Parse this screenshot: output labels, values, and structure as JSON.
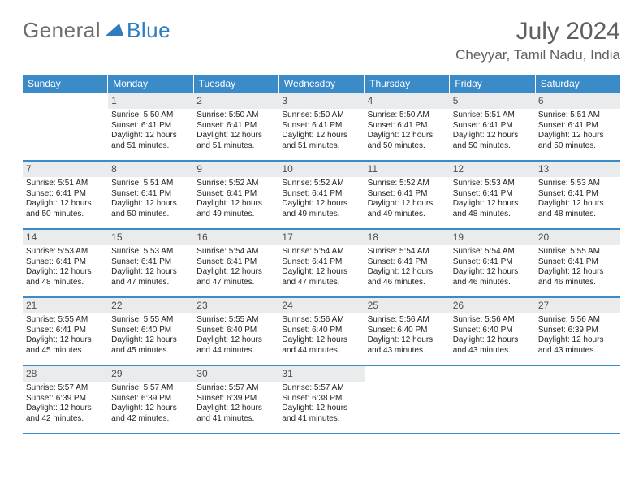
{
  "brand": {
    "part1": "General",
    "part2": "Blue"
  },
  "title": "July 2024",
  "subtitle": "Cheyyar, Tamil Nadu, India",
  "colors": {
    "header_bg": "#3b8bc9",
    "header_fg": "#ffffff",
    "daynum_bg": "#e9ebed",
    "text": "#242424",
    "muted": "#5f5f5f",
    "rule": "#3b8bc9",
    "page_bg": "#ffffff"
  },
  "typography": {
    "title_fontsize": 30,
    "subtitle_fontsize": 17,
    "dow_fontsize": 12,
    "cell_fontsize": 10
  },
  "days_of_week": [
    "Sunday",
    "Monday",
    "Tuesday",
    "Wednesday",
    "Thursday",
    "Friday",
    "Saturday"
  ],
  "weeks": [
    [
      null,
      {
        "n": "1",
        "sr": "Sunrise: 5:50 AM",
        "ss": "Sunset: 6:41 PM",
        "d1": "Daylight: 12 hours",
        "d2": "and 51 minutes."
      },
      {
        "n": "2",
        "sr": "Sunrise: 5:50 AM",
        "ss": "Sunset: 6:41 PM",
        "d1": "Daylight: 12 hours",
        "d2": "and 51 minutes."
      },
      {
        "n": "3",
        "sr": "Sunrise: 5:50 AM",
        "ss": "Sunset: 6:41 PM",
        "d1": "Daylight: 12 hours",
        "d2": "and 51 minutes."
      },
      {
        "n": "4",
        "sr": "Sunrise: 5:50 AM",
        "ss": "Sunset: 6:41 PM",
        "d1": "Daylight: 12 hours",
        "d2": "and 50 minutes."
      },
      {
        "n": "5",
        "sr": "Sunrise: 5:51 AM",
        "ss": "Sunset: 6:41 PM",
        "d1": "Daylight: 12 hours",
        "d2": "and 50 minutes."
      },
      {
        "n": "6",
        "sr": "Sunrise: 5:51 AM",
        "ss": "Sunset: 6:41 PM",
        "d1": "Daylight: 12 hours",
        "d2": "and 50 minutes."
      }
    ],
    [
      {
        "n": "7",
        "sr": "Sunrise: 5:51 AM",
        "ss": "Sunset: 6:41 PM",
        "d1": "Daylight: 12 hours",
        "d2": "and 50 minutes."
      },
      {
        "n": "8",
        "sr": "Sunrise: 5:51 AM",
        "ss": "Sunset: 6:41 PM",
        "d1": "Daylight: 12 hours",
        "d2": "and 50 minutes."
      },
      {
        "n": "9",
        "sr": "Sunrise: 5:52 AM",
        "ss": "Sunset: 6:41 PM",
        "d1": "Daylight: 12 hours",
        "d2": "and 49 minutes."
      },
      {
        "n": "10",
        "sr": "Sunrise: 5:52 AM",
        "ss": "Sunset: 6:41 PM",
        "d1": "Daylight: 12 hours",
        "d2": "and 49 minutes."
      },
      {
        "n": "11",
        "sr": "Sunrise: 5:52 AM",
        "ss": "Sunset: 6:41 PM",
        "d1": "Daylight: 12 hours",
        "d2": "and 49 minutes."
      },
      {
        "n": "12",
        "sr": "Sunrise: 5:53 AM",
        "ss": "Sunset: 6:41 PM",
        "d1": "Daylight: 12 hours",
        "d2": "and 48 minutes."
      },
      {
        "n": "13",
        "sr": "Sunrise: 5:53 AM",
        "ss": "Sunset: 6:41 PM",
        "d1": "Daylight: 12 hours",
        "d2": "and 48 minutes."
      }
    ],
    [
      {
        "n": "14",
        "sr": "Sunrise: 5:53 AM",
        "ss": "Sunset: 6:41 PM",
        "d1": "Daylight: 12 hours",
        "d2": "and 48 minutes."
      },
      {
        "n": "15",
        "sr": "Sunrise: 5:53 AM",
        "ss": "Sunset: 6:41 PM",
        "d1": "Daylight: 12 hours",
        "d2": "and 47 minutes."
      },
      {
        "n": "16",
        "sr": "Sunrise: 5:54 AM",
        "ss": "Sunset: 6:41 PM",
        "d1": "Daylight: 12 hours",
        "d2": "and 47 minutes."
      },
      {
        "n": "17",
        "sr": "Sunrise: 5:54 AM",
        "ss": "Sunset: 6:41 PM",
        "d1": "Daylight: 12 hours",
        "d2": "and 47 minutes."
      },
      {
        "n": "18",
        "sr": "Sunrise: 5:54 AM",
        "ss": "Sunset: 6:41 PM",
        "d1": "Daylight: 12 hours",
        "d2": "and 46 minutes."
      },
      {
        "n": "19",
        "sr": "Sunrise: 5:54 AM",
        "ss": "Sunset: 6:41 PM",
        "d1": "Daylight: 12 hours",
        "d2": "and 46 minutes."
      },
      {
        "n": "20",
        "sr": "Sunrise: 5:55 AM",
        "ss": "Sunset: 6:41 PM",
        "d1": "Daylight: 12 hours",
        "d2": "and 46 minutes."
      }
    ],
    [
      {
        "n": "21",
        "sr": "Sunrise: 5:55 AM",
        "ss": "Sunset: 6:41 PM",
        "d1": "Daylight: 12 hours",
        "d2": "and 45 minutes."
      },
      {
        "n": "22",
        "sr": "Sunrise: 5:55 AM",
        "ss": "Sunset: 6:40 PM",
        "d1": "Daylight: 12 hours",
        "d2": "and 45 minutes."
      },
      {
        "n": "23",
        "sr": "Sunrise: 5:55 AM",
        "ss": "Sunset: 6:40 PM",
        "d1": "Daylight: 12 hours",
        "d2": "and 44 minutes."
      },
      {
        "n": "24",
        "sr": "Sunrise: 5:56 AM",
        "ss": "Sunset: 6:40 PM",
        "d1": "Daylight: 12 hours",
        "d2": "and 44 minutes."
      },
      {
        "n": "25",
        "sr": "Sunrise: 5:56 AM",
        "ss": "Sunset: 6:40 PM",
        "d1": "Daylight: 12 hours",
        "d2": "and 43 minutes."
      },
      {
        "n": "26",
        "sr": "Sunrise: 5:56 AM",
        "ss": "Sunset: 6:40 PM",
        "d1": "Daylight: 12 hours",
        "d2": "and 43 minutes."
      },
      {
        "n": "27",
        "sr": "Sunrise: 5:56 AM",
        "ss": "Sunset: 6:39 PM",
        "d1": "Daylight: 12 hours",
        "d2": "and 43 minutes."
      }
    ],
    [
      {
        "n": "28",
        "sr": "Sunrise: 5:57 AM",
        "ss": "Sunset: 6:39 PM",
        "d1": "Daylight: 12 hours",
        "d2": "and 42 minutes."
      },
      {
        "n": "29",
        "sr": "Sunrise: 5:57 AM",
        "ss": "Sunset: 6:39 PM",
        "d1": "Daylight: 12 hours",
        "d2": "and 42 minutes."
      },
      {
        "n": "30",
        "sr": "Sunrise: 5:57 AM",
        "ss": "Sunset: 6:39 PM",
        "d1": "Daylight: 12 hours",
        "d2": "and 41 minutes."
      },
      {
        "n": "31",
        "sr": "Sunrise: 5:57 AM",
        "ss": "Sunset: 6:38 PM",
        "d1": "Daylight: 12 hours",
        "d2": "and 41 minutes."
      },
      null,
      null,
      null
    ]
  ]
}
